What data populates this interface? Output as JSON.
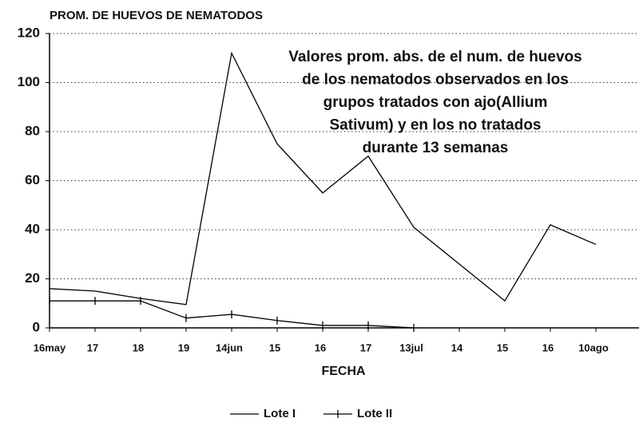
{
  "chart_data": {
    "type": "line",
    "title": "PROM. DE HUEVOS DE NEMATODOS",
    "annotation": [
      "Valores prom. abs. de el num. de huevos",
      "de los nematodos observados en los",
      "grupos tratados con ajo(Allium",
      "Sativum) y en los no tratados",
      "durante 13 semanas"
    ],
    "xlabel": "FECHA",
    "categories": [
      "16may",
      "17",
      "18",
      "19",
      "14jun",
      "15",
      "16",
      "17",
      "13jul",
      "14",
      "15",
      "16",
      "10ago"
    ],
    "series": [
      {
        "name": "Lote I",
        "color": "#000000",
        "values": [
          16,
          15,
          12,
          9.5,
          112,
          75,
          55,
          70,
          41,
          26,
          11,
          42,
          34
        ]
      },
      {
        "name": "Lote II",
        "color": "#000000",
        "values": [
          11,
          11,
          11,
          4,
          5.5,
          3,
          1,
          1,
          0,
          null,
          null,
          null,
          null
        ]
      }
    ],
    "ylim": [
      0,
      120
    ],
    "yticks": [
      0,
      20,
      40,
      60,
      80,
      100,
      120
    ],
    "grid": true
  }
}
